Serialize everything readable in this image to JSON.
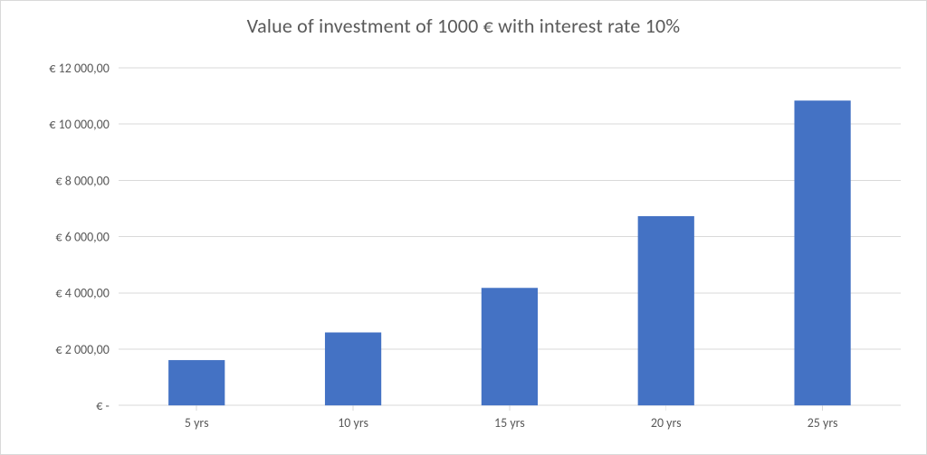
{
  "chart": {
    "type": "bar",
    "title": "Value of investment of 1000 € with interest rate 10%",
    "title_fontsize": 22,
    "title_color": "#595959",
    "background_color": "#ffffff",
    "frame_border_color": "#d9d9d9",
    "categories": [
      "5 yrs",
      "10 yrs",
      "15 yrs",
      "20 yrs",
      "25 yrs"
    ],
    "values": [
      1610.51,
      2593.74,
      4177.25,
      6727.5,
      10834.71
    ],
    "bar_color": "#4472c4",
    "bar_width": 0.36,
    "ylim": [
      0,
      12000
    ],
    "ytick_values": [
      0,
      2000,
      4000,
      6000,
      8000,
      10000,
      12000
    ],
    "ytick_labels": [
      "€ -",
      "€ 2 000,00",
      "€ 4 000,00",
      "€ 6 000,00",
      "€ 8 000,00",
      "€ 10 000,00",
      "€ 12 000,00"
    ],
    "tick_label_color": "#595959",
    "tick_label_fontsize": 14,
    "grid_color": "#d9d9d9",
    "axis_line_color": "#d9d9d9",
    "grid": true
  }
}
